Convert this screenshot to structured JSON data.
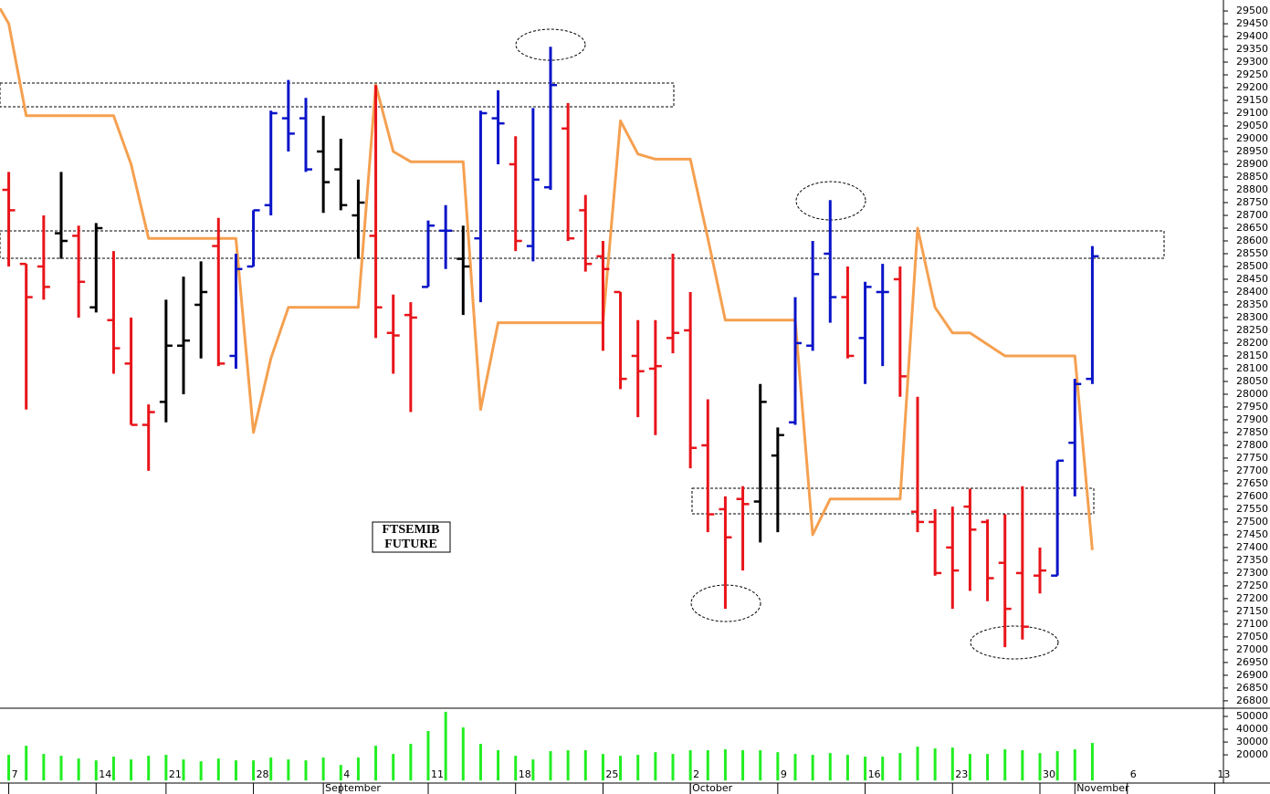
{
  "chart_data": [
    {
      "type": "ohlc",
      "x": [
        0,
        1,
        2,
        3,
        4,
        5,
        6,
        7,
        8,
        9,
        10,
        11,
        12,
        13,
        14,
        15,
        16,
        17,
        18,
        19,
        20,
        21,
        22,
        23,
        24,
        25,
        26,
        27,
        28,
        29,
        30,
        31,
        32,
        33,
        34,
        35,
        36,
        37,
        38,
        39,
        40,
        41,
        42,
        43,
        44,
        45,
        46,
        47,
        48,
        49,
        50,
        51,
        52,
        53,
        54,
        55,
        56,
        57,
        58,
        59,
        60,
        61,
        62
      ],
      "high": [
        28870,
        28510,
        28700,
        28870,
        28660,
        28670,
        28560,
        28300,
        27960,
        28370,
        28460,
        28520,
        28690,
        28550,
        28720,
        29110,
        29230,
        29160,
        29090,
        29000,
        28840,
        29210,
        28390,
        28360,
        28680,
        28740,
        28660,
        29110,
        29190,
        29010,
        29120,
        29360,
        29140,
        28780,
        28600,
        28400,
        28290,
        28290,
        28550,
        28400,
        27980,
        27600,
        27640,
        28040,
        27870,
        28380,
        28600,
        28760,
        28500,
        28440,
        28510,
        28500,
        27990,
        27550,
        27560,
        27630,
        27510,
        27530,
        27640,
        27400,
        27740,
        28060,
        28580
      ],
      "low": [
        28500,
        27940,
        28370,
        28530,
        28300,
        28320,
        28080,
        27880,
        27700,
        27890,
        28000,
        28140,
        28110,
        28100,
        28500,
        28700,
        28950,
        28870,
        28710,
        28720,
        28530,
        28220,
        28080,
        27930,
        28420,
        28490,
        28310,
        28360,
        28900,
        28560,
        28520,
        28800,
        28600,
        28480,
        28170,
        28020,
        27910,
        27840,
        28160,
        27710,
        27460,
        27160,
        27310,
        27420,
        27460,
        27880,
        28170,
        28280,
        28140,
        28040,
        28110,
        27990,
        27460,
        27290,
        27160,
        27230,
        27190,
        27010,
        27040,
        27220,
        27290,
        27600,
        28040
      ],
      "open": [
        28800,
        28510,
        28500,
        28630,
        28620,
        28340,
        28290,
        28120,
        27880,
        27970,
        28190,
        28350,
        28580,
        28150,
        28500,
        28740,
        29080,
        29080,
        28950,
        28880,
        28700,
        28620,
        28240,
        28310,
        28420,
        28640,
        28530,
        28610,
        29080,
        28900,
        28580,
        28810,
        29040,
        28720,
        28540,
        28400,
        28150,
        28100,
        28220,
        28250,
        27800,
        27550,
        27590,
        27580,
        27760,
        27890,
        28190,
        28550,
        28380,
        28220,
        28400,
        28450,
        27540,
        27500,
        27400,
        27560,
        27500,
        27340,
        27300,
        27290,
        27290,
        27810,
        28060
      ],
      "close": [
        28720,
        28380,
        28420,
        28600,
        28440,
        28650,
        28180,
        27880,
        27930,
        28190,
        28210,
        28400,
        28120,
        28490,
        28720,
        29100,
        29020,
        28880,
        28830,
        28740,
        28750,
        28340,
        28230,
        28300,
        28660,
        28640,
        28500,
        29100,
        29060,
        28600,
        28840,
        29210,
        28610,
        28510,
        28490,
        28060,
        28090,
        28110,
        28240,
        27790,
        27530,
        27440,
        27570,
        27970,
        27840,
        28200,
        28470,
        28380,
        28150,
        28420,
        28400,
        28070,
        27500,
        27300,
        27310,
        27470,
        27280,
        27160,
        27090,
        27310,
        27740,
        28040,
        28540
      ],
      "colors": [
        "#e8141a",
        "#e8141a",
        "#e8141a",
        "#000000",
        "#e8141a",
        "#000000",
        "#e8141a",
        "#e8141a",
        "#e8141a",
        "#000000",
        "#000000",
        "#000000",
        "#e8141a",
        "#0a14c8",
        "#0a14c8",
        "#0a14c8",
        "#0a14c8",
        "#0a14c8",
        "#000000",
        "#000000",
        "#000000",
        "#e8141a",
        "#e8141a",
        "#e8141a",
        "#0a14c8",
        "#0a14c8",
        "#000000",
        "#0a14c8",
        "#0a14c8",
        "#e8141a",
        "#0a14c8",
        "#0a14c8",
        "#e8141a",
        "#e8141a",
        "#e8141a",
        "#e8141a",
        "#e8141a",
        "#e8141a",
        "#e8141a",
        "#e8141a",
        "#e8141a",
        "#e8141a",
        "#e8141a",
        "#000000",
        "#000000",
        "#0a14c8",
        "#0a14c8",
        "#0a14c8",
        "#e8141a",
        "#0a14c8",
        "#0a14c8",
        "#e8141a",
        "#e8141a",
        "#e8141a",
        "#e8141a",
        "#e8141a",
        "#e8141a",
        "#e8141a",
        "#e8141a",
        "#e8141a",
        "#0a14c8",
        "#0a14c8",
        "#0a14c8"
      ],
      "line": {
        "color": "#f5a050",
        "x": [
          -0.5,
          0,
          1,
          6,
          7,
          8,
          13,
          14,
          15,
          16,
          20,
          21,
          22,
          23,
          26,
          27,
          28,
          34,
          35,
          36,
          37,
          39,
          40,
          41,
          45,
          46,
          47,
          51,
          52,
          53,
          54,
          55,
          57,
          61,
          62
        ],
        "values": [
          29510,
          29450,
          29090,
          29090,
          28900,
          28610,
          28610,
          27850,
          28140,
          28340,
          28340,
          29210,
          28950,
          28910,
          28910,
          27940,
          28280,
          28280,
          29070,
          28940,
          28920,
          28920,
          28610,
          28290,
          28290,
          27450,
          27590,
          27590,
          28650,
          28340,
          28240,
          28240,
          28150,
          28150,
          27390
        ]
      },
      "annotation": [
        "FTSEMIB",
        "FUTURE"
      ],
      "xlim": [
        -0.5,
        69.5
      ],
      "ylim": [
        26771,
        29543
      ],
      "yticks": [
        26800,
        26850,
        26900,
        26950,
        27000,
        27050,
        27100,
        27150,
        27200,
        27250,
        27300,
        27350,
        27400,
        27450,
        27500,
        27550,
        27600,
        27650,
        27700,
        27750,
        27800,
        27850,
        27900,
        27950,
        28000,
        28050,
        28100,
        28150,
        28200,
        28250,
        28300,
        28350,
        28400,
        28450,
        28500,
        28550,
        28600,
        28650,
        28700,
        28750,
        28800,
        28850,
        28900,
        28950,
        29000,
        29050,
        29100,
        29150,
        29200,
        29250,
        29300,
        29350,
        29400,
        29450,
        29500
      ]
    },
    {
      "type": "bar",
      "color": "#22ee22",
      "x": [
        0,
        1,
        2,
        3,
        4,
        5,
        6,
        7,
        8,
        9,
        10,
        11,
        12,
        13,
        14,
        15,
        16,
        17,
        18,
        19,
        20,
        21,
        22,
        23,
        24,
        25,
        26,
        27,
        28,
        29,
        30,
        31,
        32,
        33,
        34,
        35,
        36,
        37,
        38,
        39,
        40,
        41,
        42,
        43,
        44,
        45,
        46,
        47,
        48,
        49,
        50,
        51,
        52,
        53,
        54,
        55,
        56,
        57,
        58,
        59,
        60,
        61,
        62
      ],
      "values": [
        20000,
        27100,
        20700,
        19300,
        17100,
        15700,
        18600,
        16400,
        19300,
        20000,
        16400,
        15000,
        17100,
        15700,
        15700,
        17900,
        16400,
        15700,
        17900,
        12100,
        17900,
        27100,
        20700,
        28600,
        38600,
        53600,
        41400,
        28600,
        23600,
        19300,
        16400,
        22900,
        23600,
        23600,
        20700,
        19300,
        20000,
        22100,
        20700,
        23600,
        23600,
        24300,
        23600,
        23600,
        22100,
        20700,
        20000,
        21400,
        20000,
        18600,
        18600,
        21400,
        26400,
        25000,
        25700,
        20700,
        20700,
        24300,
        23600,
        21400,
        22900,
        24300,
        29300
      ],
      "xlim": [
        -0.5,
        69.5
      ],
      "ylim": [
        -2000,
        56400
      ],
      "yticks": [
        20000,
        30000,
        40000,
        50000
      ],
      "xticks": [
        {
          "value": 0,
          "label": "7"
        },
        {
          "value": 5,
          "label": "14"
        },
        {
          "value": 9,
          "label": "21"
        },
        {
          "value": 14,
          "label": "28"
        },
        {
          "value": 19,
          "label": "4"
        },
        {
          "value": 24,
          "label": "11"
        },
        {
          "value": 29,
          "label": "18"
        },
        {
          "value": 34,
          "label": "25"
        },
        {
          "value": 39,
          "label": "2"
        },
        {
          "value": 44,
          "label": "9"
        },
        {
          "value": 49,
          "label": "16"
        },
        {
          "value": 54,
          "label": "23"
        },
        {
          "value": 59,
          "label": "30"
        },
        {
          "value": 64,
          "label": "6"
        },
        {
          "value": 69,
          "label": "13"
        }
      ],
      "months": [
        {
          "value": 18,
          "label": "September"
        },
        {
          "value": 39,
          "label": "October"
        },
        {
          "value": 61,
          "label": "November"
        }
      ]
    }
  ]
}
